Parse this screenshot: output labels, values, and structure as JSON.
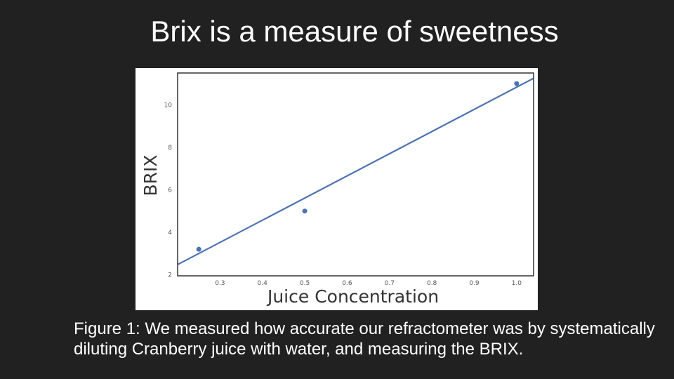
{
  "slide": {
    "title": "Brix is a measure of sweetness",
    "caption": "Figure 1: We measured how accurate our refractometer was by systematically diluting Cranberry juice with water, and measuring the BRIX."
  },
  "chart_data": {
    "type": "scatter",
    "xlabel": "Juice Concentration",
    "ylabel": "BRIX",
    "xlim": [
      0.2,
      1.04
    ],
    "ylim": [
      1.95,
      11.5
    ],
    "xticks": [
      0.3,
      0.4,
      0.5,
      0.6,
      0.7,
      0.8,
      0.9,
      1.0
    ],
    "xtick_labels": [
      "0.3",
      "0.4",
      "0.5",
      "0.6",
      "0.7",
      "0.8",
      "0.9",
      "1.0"
    ],
    "yticks": [
      2,
      4,
      6,
      8,
      10
    ],
    "ytick_labels": [
      "2",
      "4",
      "6",
      "8",
      "10"
    ],
    "points": [
      {
        "x": 0.25,
        "y": 3.2
      },
      {
        "x": 0.5,
        "y": 5.0
      },
      {
        "x": 1.0,
        "y": 11.0
      }
    ],
    "fit_line": {
      "x": [
        0.2,
        1.04
      ],
      "y": [
        2.48,
        11.25
      ]
    },
    "grid": false,
    "colors": {
      "marker": "#4c72b0",
      "line": "#4c72b0",
      "frame": "#333333"
    }
  }
}
